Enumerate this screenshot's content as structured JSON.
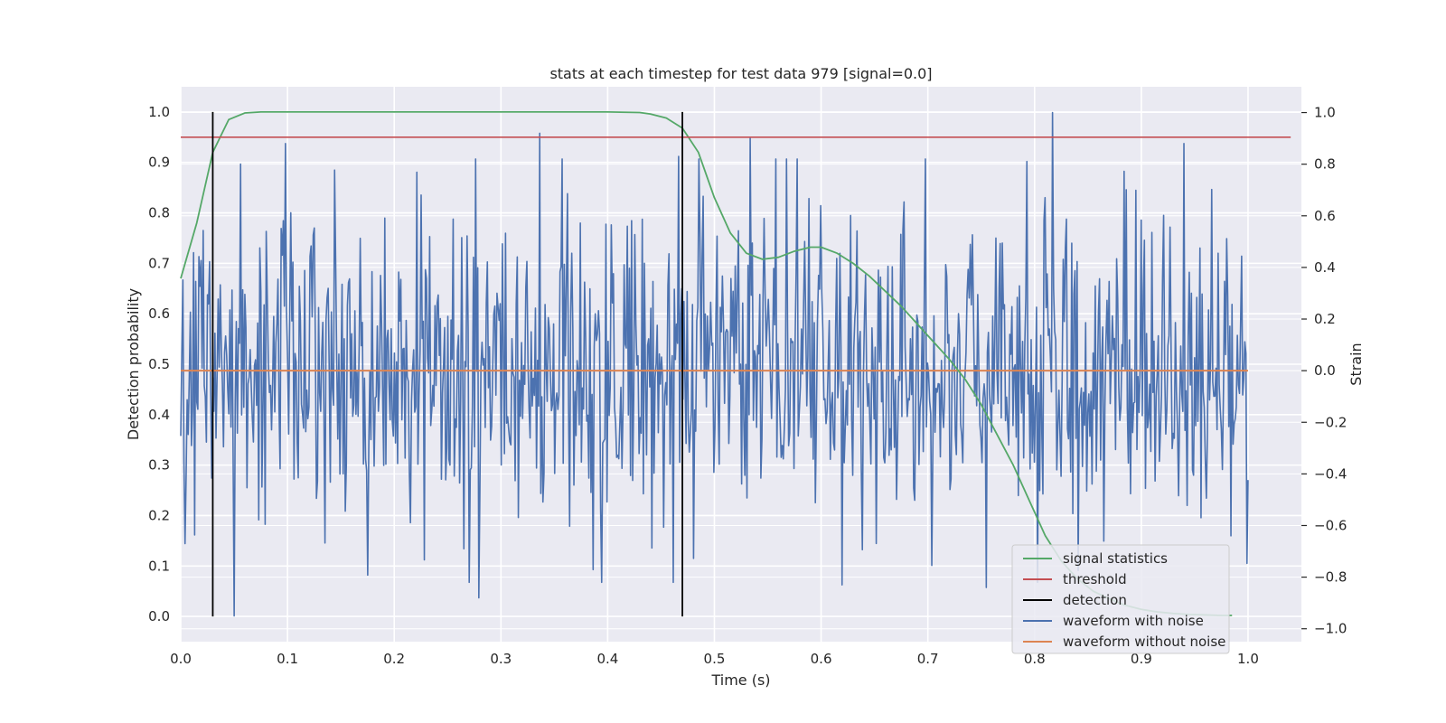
{
  "chart_data": {
    "type": "line",
    "title": "stats at each timestep for test data 979 [signal=0.0]",
    "xlabel": "Time (s)",
    "ylabel_left": "Detection probability",
    "ylabel_right": "Strain",
    "xlim": [
      0.0,
      1.05
    ],
    "ylim_left": [
      -0.05,
      1.05
    ],
    "ylim_right": [
      -1.05,
      1.1
    ],
    "xticks": [
      "0.0",
      "0.1",
      "0.2",
      "0.3",
      "0.4",
      "0.5",
      "0.6",
      "0.7",
      "0.8",
      "0.9",
      "1.0"
    ],
    "yticks_left": [
      "0.0",
      "0.1",
      "0.2",
      "0.3",
      "0.4",
      "0.5",
      "0.6",
      "0.7",
      "0.8",
      "0.9",
      "1.0"
    ],
    "yticks_right": [
      "−1.0",
      "−0.8",
      "−0.6",
      "−0.4",
      "−0.2",
      "0.0",
      "0.2",
      "0.4",
      "0.6",
      "0.8",
      "1.0"
    ],
    "grid": true,
    "legend_position": "lower-right",
    "series": [
      {
        "name": "signal statistics",
        "axis": "left",
        "color": "#55a868",
        "x": [
          0.0,
          0.015,
          0.03,
          0.045,
          0.06,
          0.075,
          0.1,
          0.2,
          0.3,
          0.4,
          0.43,
          0.44,
          0.455,
          0.47,
          0.485,
          0.5,
          0.515,
          0.53,
          0.545,
          0.56,
          0.575,
          0.59,
          0.6,
          0.615,
          0.63,
          0.645,
          0.66,
          0.675,
          0.69,
          0.705,
          0.72,
          0.735,
          0.75,
          0.765,
          0.78,
          0.795,
          0.81,
          0.825,
          0.84,
          0.855,
          0.87,
          0.885,
          0.9,
          0.915,
          0.93,
          0.945,
          0.96,
          0.975,
          0.985
        ],
        "values": [
          0.67,
          0.78,
          0.92,
          0.985,
          0.998,
          1.0,
          1.0,
          1.0,
          1.0,
          1.0,
          0.999,
          0.996,
          0.988,
          0.968,
          0.92,
          0.83,
          0.76,
          0.72,
          0.708,
          0.712,
          0.724,
          0.732,
          0.732,
          0.72,
          0.7,
          0.675,
          0.645,
          0.615,
          0.58,
          0.545,
          0.51,
          0.47,
          0.42,
          0.36,
          0.3,
          0.23,
          0.16,
          0.11,
          0.075,
          0.05,
          0.035,
          0.022,
          0.014,
          0.009,
          0.006,
          0.004,
          0.003,
          0.002,
          0.002
        ]
      },
      {
        "name": "threshold",
        "axis": "left",
        "color": "#c44e52",
        "x": [
          0.0,
          1.04
        ],
        "values": [
          0.95,
          0.95
        ]
      },
      {
        "name": "detection",
        "axis": "left",
        "color": "#000000",
        "segments": [
          {
            "x": 0.03,
            "y": [
              0.0,
              1.0
            ]
          },
          {
            "x": 0.47,
            "y": [
              0.0,
              1.0
            ]
          }
        ]
      },
      {
        "name": "waveform with noise",
        "axis": "right",
        "color": "#4c72b0",
        "x_range": [
          0.0,
          1.0
        ],
        "num_points": 1000,
        "sampled_peaks": [
          {
            "x": 0.004,
            "value": -0.67
          },
          {
            "x": 0.05,
            "value": -0.95
          },
          {
            "x": 0.098,
            "value": 0.88
          },
          {
            "x": 0.279,
            "value": -0.88
          },
          {
            "x": 0.336,
            "value": 0.92
          },
          {
            "x": 0.466,
            "value": 0.83
          },
          {
            "x": 0.534,
            "value": 0.9
          },
          {
            "x": 0.62,
            "value": -0.83
          },
          {
            "x": 0.755,
            "value": -0.84
          },
          {
            "x": 0.817,
            "value": 1.0
          },
          {
            "x": 0.94,
            "value": 0.88
          }
        ]
      },
      {
        "name": "waveform without noise",
        "axis": "right",
        "color": "#dd8452",
        "x": [
          0.0,
          1.0
        ],
        "values": [
          0.0,
          0.0
        ]
      }
    ]
  }
}
